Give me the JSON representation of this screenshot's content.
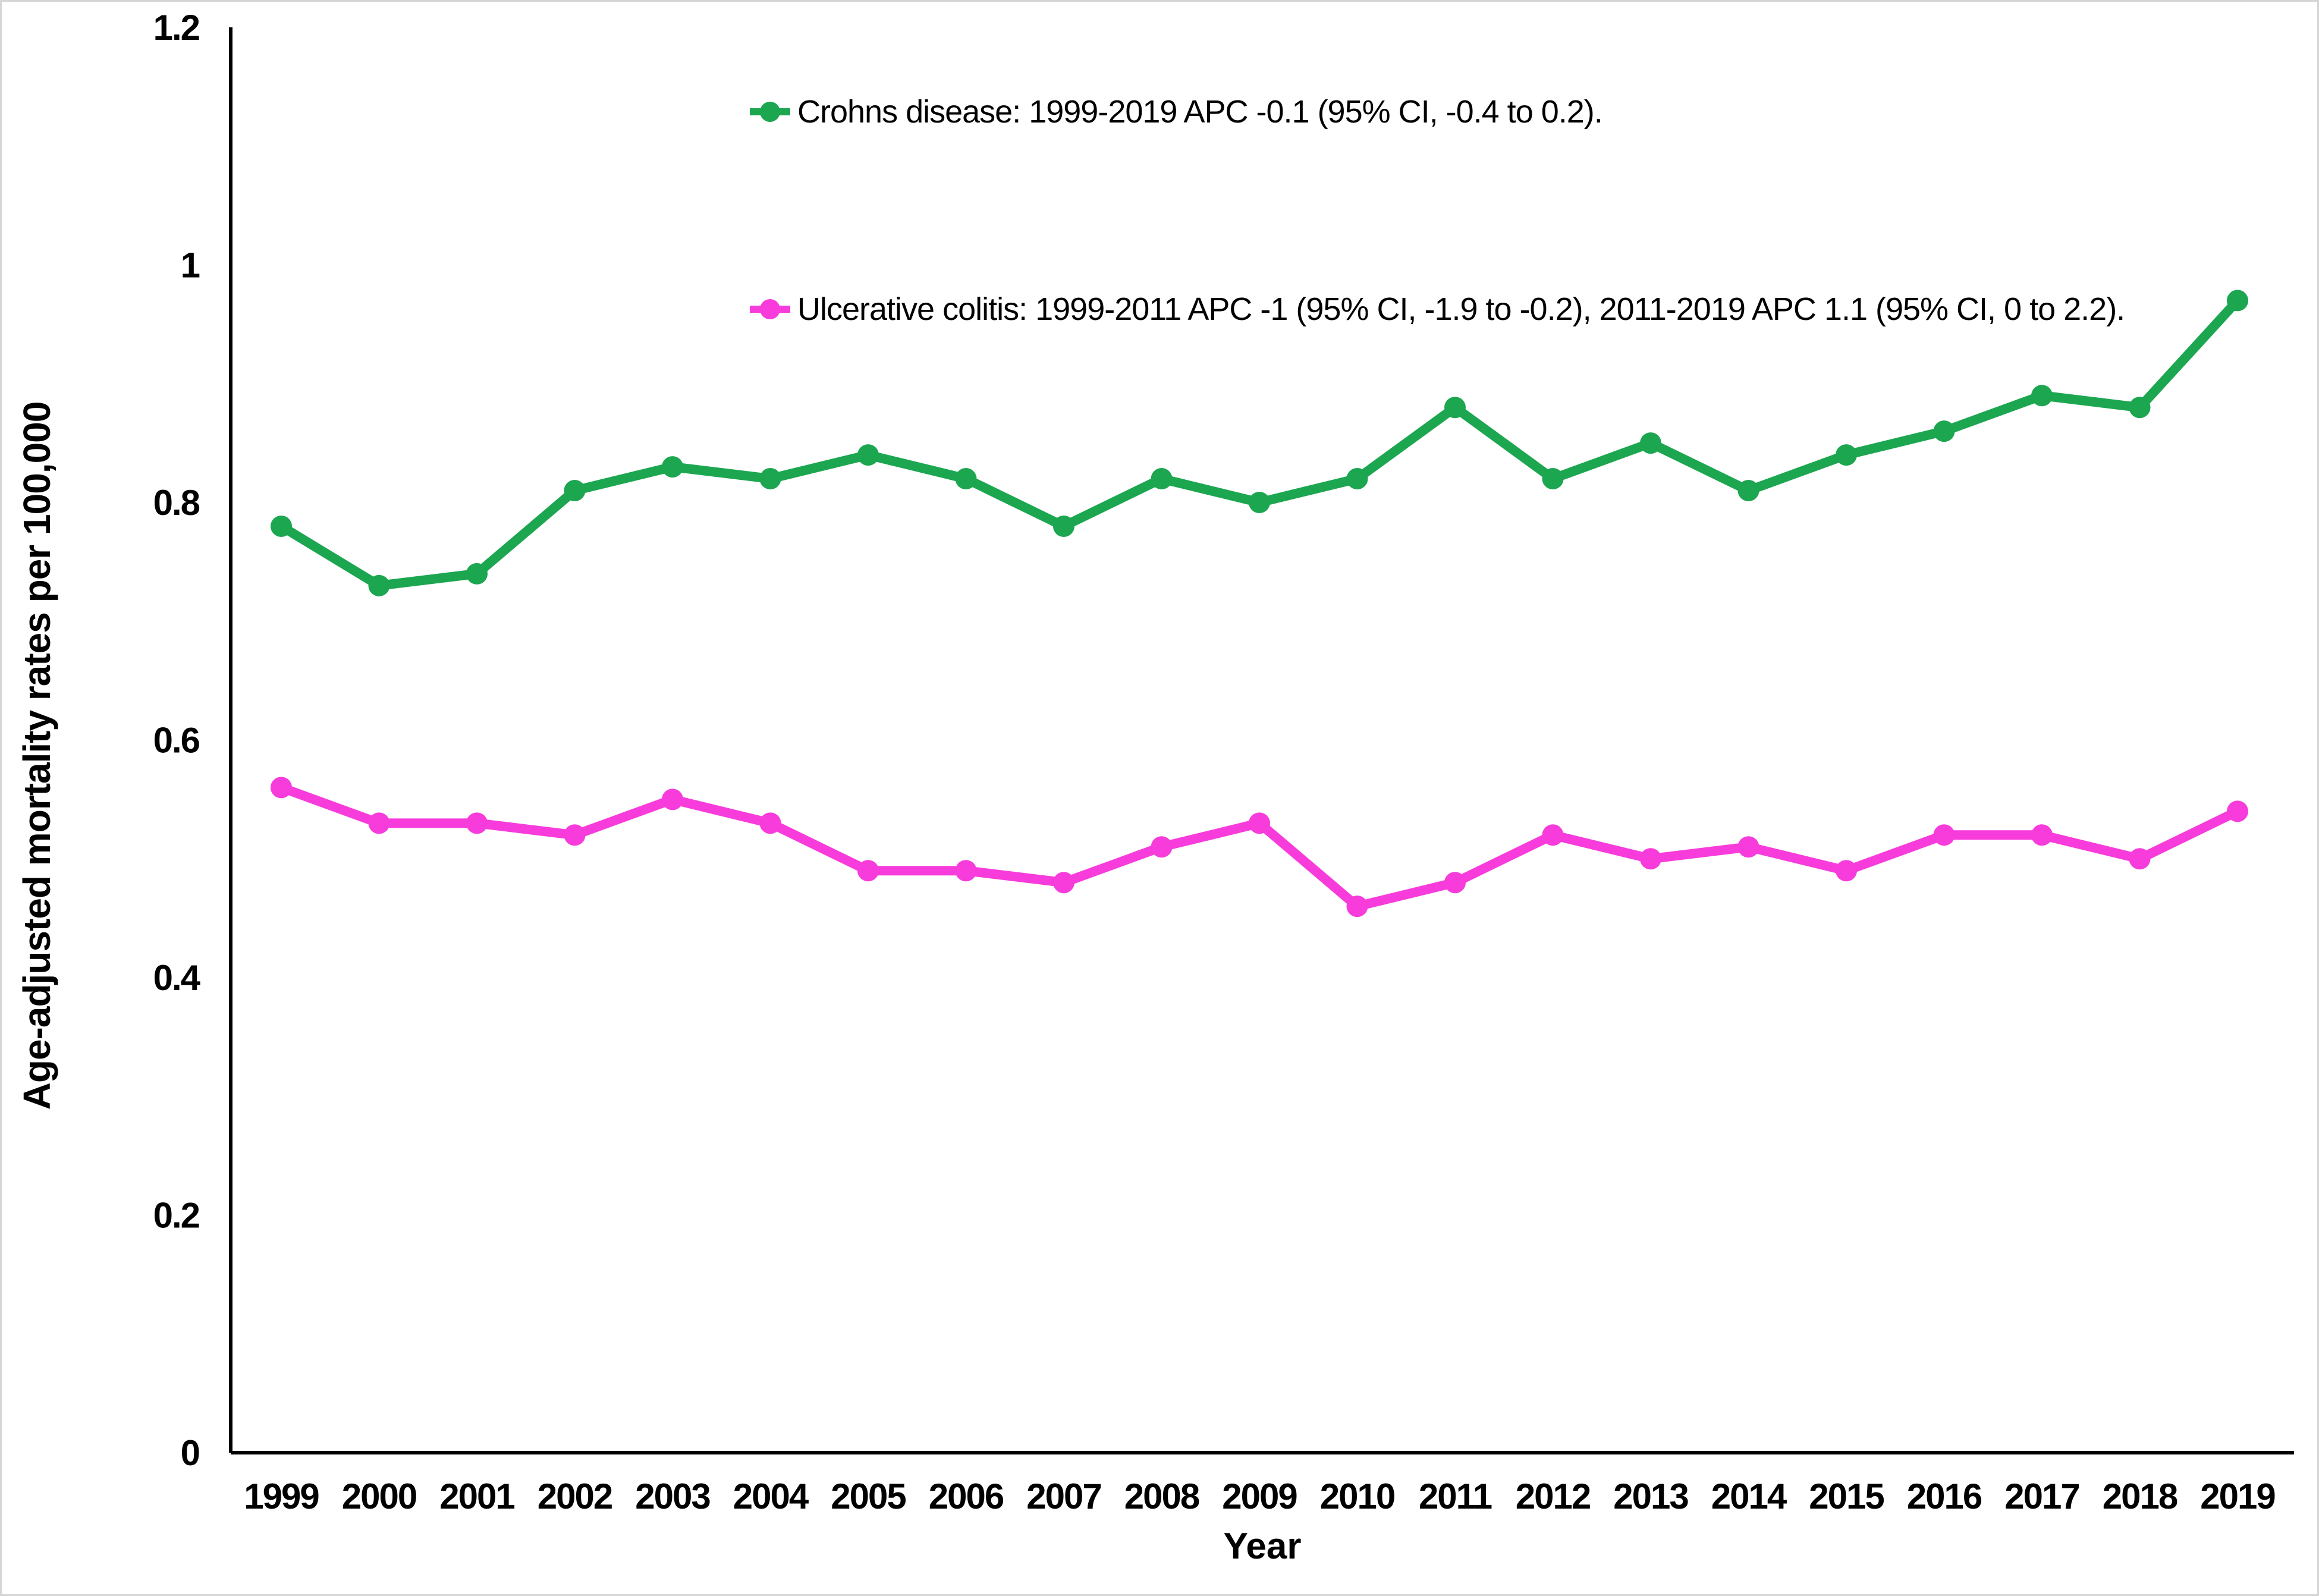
{
  "figure": {
    "background": "#ffffff",
    "border_color": "#d6d6d6",
    "axis_color": "#000000",
    "text_color": "#000000"
  },
  "legend": [
    {
      "series": "Crohns disease",
      "color": "#1CA650",
      "label": "Crohns disease: 1999-2019 APC -0.1 (95% CI, -0.4 to 0.2)."
    },
    {
      "series": "Ulcerative colitis",
      "color": "#F83BDB",
      "label": "Ulcerative colitis: 1999-2011 APC -1 (95% CI, -1.9 to -0.2), 2011-2019 APC 1.1 (95% CI, 0 to 2.2)."
    }
  ],
  "chart_data": {
    "type": "line",
    "title": "",
    "xlabel": "Year",
    "ylabel": "Age-adjusted mortality rates per 100,000",
    "x": [
      1999,
      2000,
      2001,
      2002,
      2003,
      2004,
      2005,
      2006,
      2007,
      2008,
      2009,
      2010,
      2011,
      2012,
      2013,
      2014,
      2015,
      2016,
      2017,
      2018,
      2019
    ],
    "series": [
      {
        "name": "Crohns disease",
        "color": "#1CA650",
        "marker": "circle",
        "values": [
          0.78,
          0.73,
          0.74,
          0.81,
          0.83,
          0.82,
          0.84,
          0.82,
          0.78,
          0.82,
          0.8,
          0.82,
          0.88,
          0.82,
          0.85,
          0.81,
          0.84,
          0.86,
          0.89,
          0.88,
          0.97
        ]
      },
      {
        "name": "Ulcerative colitis",
        "color": "#F83BDB",
        "marker": "circle",
        "values": [
          0.56,
          0.53,
          0.53,
          0.52,
          0.55,
          0.53,
          0.49,
          0.49,
          0.48,
          0.51,
          0.53,
          0.46,
          0.48,
          0.52,
          0.5,
          0.51,
          0.49,
          0.52,
          0.52,
          0.5,
          0.54
        ]
      }
    ],
    "ylim": [
      0,
      1.2
    ],
    "yticks": [
      0,
      0.2,
      0.4,
      0.6,
      0.8,
      1,
      1.2
    ],
    "ytick_labels": [
      "0",
      "0.2",
      "0.4",
      "0.6",
      "0.8",
      "1",
      "1.2"
    ],
    "grid": false,
    "legend_position": "inside-top"
  }
}
